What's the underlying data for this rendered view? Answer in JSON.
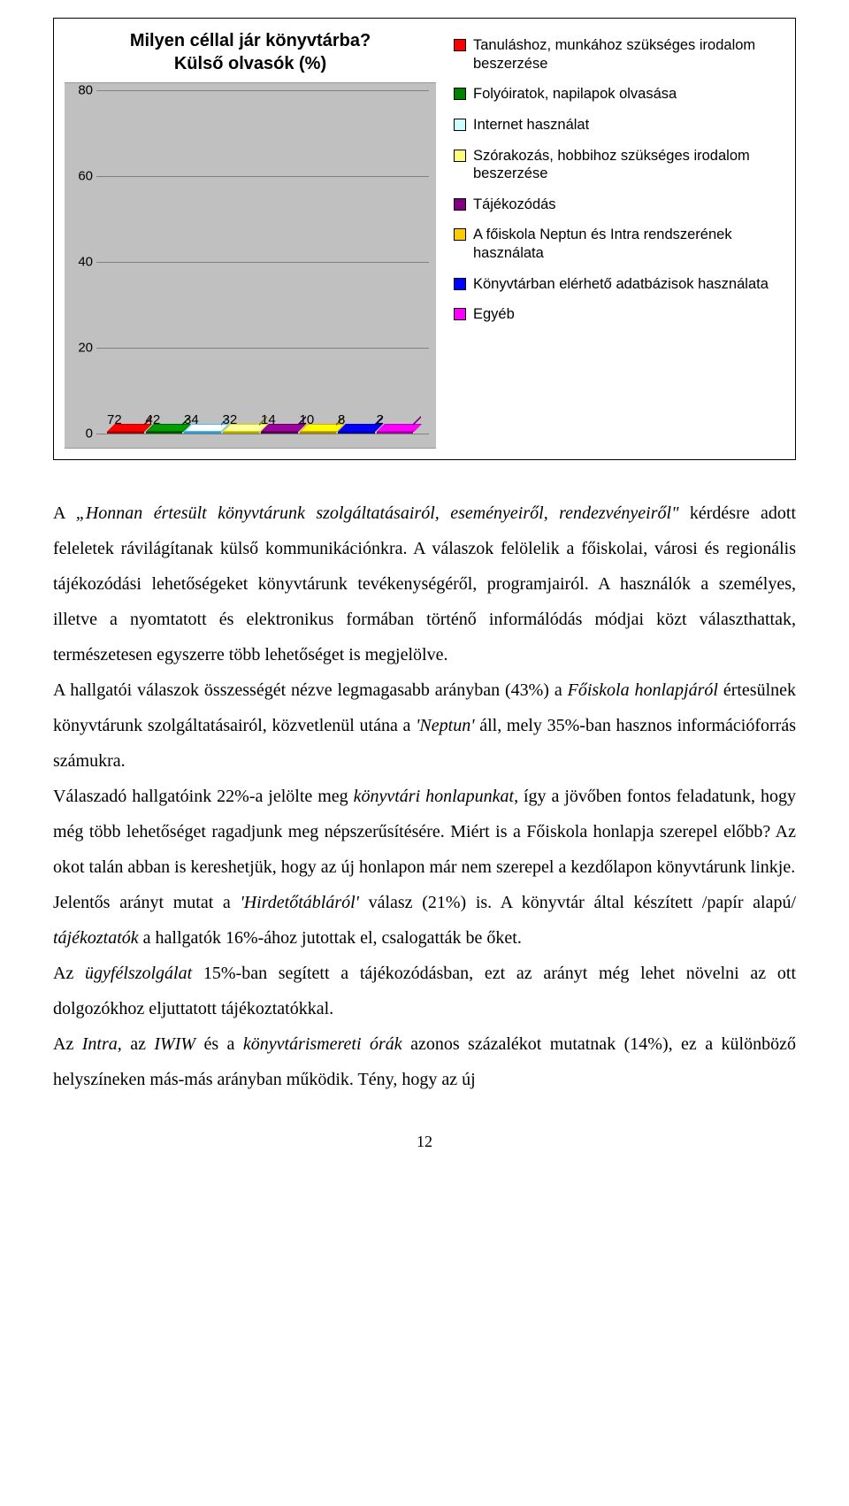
{
  "chart": {
    "title_line1": "Milyen céllal jár könyvtárba?",
    "title_line2": "Külső olvasók (%)",
    "type": "bar3d",
    "ymax": 80,
    "ytick_step": 20,
    "yticks": [
      "0",
      "20",
      "40",
      "60",
      "80"
    ],
    "background_color": "#c0c0c0",
    "grid_color": "#808080",
    "bars": [
      {
        "value": 72,
        "label": "72",
        "fill": "#ff0000",
        "border": "#990000"
      },
      {
        "value": 42,
        "label": "42",
        "fill": "#008000",
        "border": "#005000"
      },
      {
        "value": 34,
        "label": "34",
        "fill": "#ccffff",
        "border": "#3399cc"
      },
      {
        "value": 32,
        "label": "32",
        "fill": "#ffff80",
        "border": "#aaaa00"
      },
      {
        "value": 14,
        "label": "14",
        "fill": "#800080",
        "border": "#500050"
      },
      {
        "value": 10,
        "label": "10",
        "fill": "#ffcc00",
        "border": "#aa8800"
      },
      {
        "value": 8,
        "label": "8",
        "fill": "#0000ff",
        "border": "#000099"
      },
      {
        "value": 2,
        "label": "2",
        "fill": "#ff00ff",
        "border": "#990099"
      }
    ],
    "legend": [
      {
        "color": "#ff0000",
        "label": "Tanuláshoz, munkához szükséges irodalom beszerzése"
      },
      {
        "color": "#008000",
        "label": "Folyóiratok, napilapok olvasása"
      },
      {
        "color": "#ccffff",
        "label": "Internet használat"
      },
      {
        "color": "#ffff80",
        "label": "Szórakozás, hobbihoz szükséges irodalom beszerzése"
      },
      {
        "color": "#800080",
        "label": "Tájékozódás"
      },
      {
        "color": "#ffcc00",
        "label": "A főiskola Neptun és Intra rendszerének használata"
      },
      {
        "color": "#0000ff",
        "label": "Könyvtárban elérhető adatbázisok használata"
      },
      {
        "color": "#ff00ff",
        "label": "Egyéb"
      }
    ]
  },
  "body": {
    "p1a": "A ",
    "p1b": "„Honnan értesült könyvtárunk szolgáltatásairól, eseményeiről, rendezvényeiről\"",
    "p1c": " kérdésre adott feleletek rávilágítanak külső kommunikációnkra. A válaszok felölelik a főiskolai, városi és regionális tájékozódási lehetőségeket könyvtárunk tevékenységéről, programjairól. A használók a személyes, illetve a nyomtatott és elektronikus formában történő informálódás módjai közt választhattak, természetesen egyszerre több lehetőséget is megjelölve.",
    "p2a": "A hallgatói válaszok összességét nézve legmagasabb arányban (43%) a ",
    "p2b": "Főiskola honlapjáról",
    "p2c": " értesülnek könyvtárunk szolgáltatásairól, közvetlenül utána a ",
    "p2d": "'Neptun'",
    "p2e": " áll, mely 35%-ban hasznos információforrás számukra.",
    "p3a": "Válaszadó hallgatóink 22%-a jelölte meg ",
    "p3b": "könyvtári honlapunkat",
    "p3c": ", így a jövőben fontos feladatunk, hogy még több lehetőséget ragadjunk meg népszerűsítésére. Miért is a Főiskola honlapja szerepel előbb? Az okot talán abban is kereshetjük, hogy az új honlapon már nem szerepel a kezdőlapon könyvtárunk linkje.",
    "p4a": "Jelentős arányt mutat a ",
    "p4b": "'Hirdetőtábláról'",
    "p4c": " válasz (21%) is. A könyvtár által készített /papír alapú/ ",
    "p4d": "tájékoztatók",
    "p4e": " a hallgatók 16%-ához jutottak el, csalogatták be őket.",
    "p5a": "Az ",
    "p5b": "ügyfélszolgálat",
    "p5c": " 15%-ban segített a tájékozódásban, ezt az arányt még lehet növelni az ott dolgozókhoz eljuttatott tájékoztatókkal.",
    "p6a": "Az ",
    "p6b": "Intra,",
    "p6c": " az ",
    "p6d": "IWIW",
    "p6e": " és a ",
    "p6f": "könyvtárismereti órák",
    "p6g": " azonos százalékot mutatnak (14%), ez a különböző helyszíneken más-más arányban működik. Tény, hogy az új"
  },
  "page_number": "12"
}
